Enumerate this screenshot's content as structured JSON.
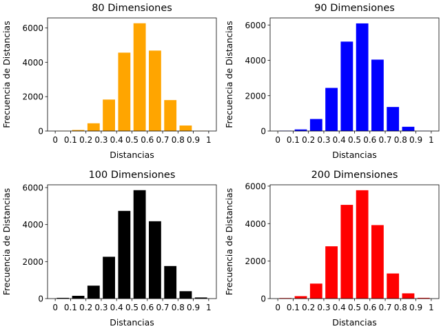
{
  "chart_data": [
    {
      "type": "bar",
      "title": "80 Dimensiones",
      "xlabel": "Distancias",
      "ylabel": "Frecuencia de Distancias",
      "color": "#ffa500",
      "x": [
        0.05,
        0.15,
        0.25,
        0.35,
        0.45,
        0.55,
        0.65,
        0.75,
        0.85,
        0.95
      ],
      "values": [
        10,
        60,
        450,
        1830,
        4560,
        6270,
        4680,
        1800,
        320,
        20
      ],
      "xticks": [
        "0",
        "0.1",
        "0.2",
        "0.3",
        "0.4",
        "0.5",
        "0.6",
        "0.7",
        "0.8",
        "0.9",
        "1"
      ],
      "yticks": [
        "0",
        "2000",
        "4000",
        "6000"
      ],
      "ylim": [
        0,
        6580
      ]
    },
    {
      "type": "bar",
      "title": "90 Dimensiones",
      "xlabel": "Distancias",
      "ylabel": "Frecuencia de Distancias",
      "color": "#0000ff",
      "x": [
        0.05,
        0.15,
        0.25,
        0.35,
        0.45,
        0.55,
        0.65,
        0.75,
        0.85,
        0.95
      ],
      "values": [
        20,
        90,
        680,
        2440,
        5060,
        6090,
        4040,
        1360,
        240,
        10
      ],
      "xticks": [
        "0",
        "0.1",
        "0.2",
        "0.3",
        "0.4",
        "0.5",
        "0.6",
        "0.7",
        "0.8",
        "0.9",
        "1"
      ],
      "yticks": [
        "0",
        "2000",
        "4000",
        "6000"
      ],
      "ylim": [
        0,
        6400
      ]
    },
    {
      "type": "bar",
      "title": "100 Dimensiones",
      "xlabel": "Distancias",
      "ylabel": "Frecuencia de Distancias",
      "color": "#000000",
      "x": [
        0.05,
        0.15,
        0.25,
        0.35,
        0.45,
        0.55,
        0.65,
        0.75,
        0.85,
        0.95
      ],
      "values": [
        40,
        150,
        700,
        2260,
        4740,
        5860,
        4180,
        1760,
        400,
        60
      ],
      "xticks": [
        "0",
        "0.1",
        "0.2",
        "0.3",
        "0.4",
        "0.5",
        "0.6",
        "0.7",
        "0.8",
        "0.9",
        "1"
      ],
      "yticks": [
        "0",
        "2000",
        "4000",
        "6000"
      ],
      "ylim": [
        0,
        6150
      ]
    },
    {
      "type": "bar",
      "title": "200 Dimensiones",
      "xlabel": "Distancias",
      "ylabel": "Frecuencia de Distancias",
      "color": "#ff0000",
      "x": [
        0.05,
        0.15,
        0.25,
        0.35,
        0.45,
        0.55,
        0.65,
        0.75,
        0.85,
        0.95
      ],
      "values": [
        30,
        130,
        800,
        2790,
        5000,
        5780,
        3920,
        1340,
        280,
        40
      ],
      "xticks": [
        "0",
        "0.1",
        "0.2",
        "0.3",
        "0.4",
        "0.5",
        "0.6",
        "0.7",
        "0.8",
        "0.9",
        "1"
      ],
      "yticks": [
        "0",
        "2000",
        "4000",
        "6000"
      ],
      "ylim": [
        0,
        6070
      ]
    }
  ]
}
